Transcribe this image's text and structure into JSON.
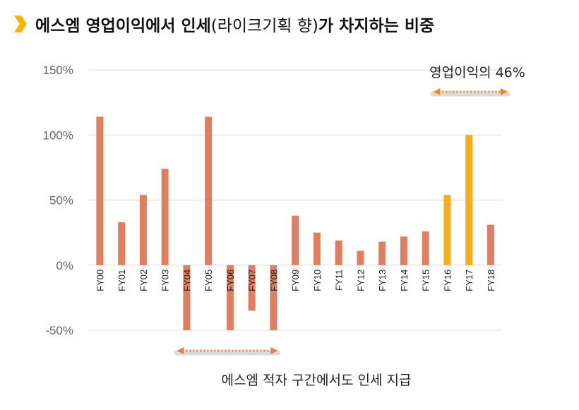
{
  "title": {
    "bold_part": "에스엠 영업이익에서 인세",
    "paren_part": "(라이크기획 향)",
    "bold_tail": "가 차지하는 비중"
  },
  "colors": {
    "normal_bar": "#E07E62",
    "highlight_bar": "#F5AE1C",
    "arrow_orange": "#F08A1F",
    "arrow_salmon": "#E07E62",
    "chevron": "#F5B400",
    "grid": "#D9D9D9"
  },
  "chart_data": {
    "type": "bar",
    "title": "",
    "xlabel": "",
    "ylabel": "",
    "ylim": [
      -0.5,
      1.5
    ],
    "yticks": [
      -0.5,
      0,
      0.5,
      1.0,
      1.5
    ],
    "ytick_labels": [
      "-50%",
      "0%",
      "50%",
      "100%",
      "150%"
    ],
    "grid": true,
    "categories": [
      "FY00",
      "FY01",
      "FY02",
      "FY03",
      "FY04",
      "FY05",
      "FY06",
      "FY07",
      "FY08",
      "FY09",
      "FY10",
      "FY11",
      "FY12",
      "FY13",
      "FY14",
      "FY15",
      "FY16",
      "FY17",
      "FY18"
    ],
    "values": [
      1.14,
      0.33,
      0.54,
      0.74,
      -0.5,
      1.14,
      -0.5,
      -0.35,
      -0.5,
      0.38,
      0.25,
      0.19,
      0.11,
      0.18,
      0.22,
      0.26,
      0.54,
      1.0,
      0.31
    ],
    "highlighted": [
      "FY16",
      "FY17"
    ],
    "annotations": [
      {
        "text": "영업이익의 46%",
        "span": [
          "FY16",
          "FY18"
        ]
      },
      {
        "text": "에스엠 적자 구간에서도 인세 지급",
        "span": [
          "FY04",
          "FY08"
        ]
      }
    ]
  }
}
